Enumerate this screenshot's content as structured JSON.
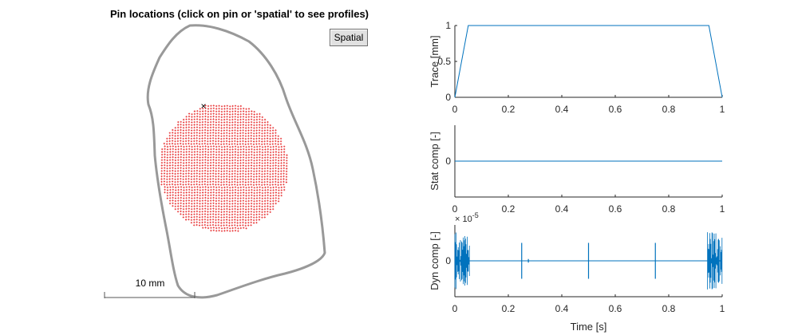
{
  "map": {
    "title": "Pin locations (click on pin or 'spatial' to see profiles)",
    "spatial_button": "Spatial",
    "scale_label": "10 mm",
    "outline_color": "#999999",
    "pin_color": "#e8393a",
    "marker_symbol": "×"
  },
  "chart_data": [
    {
      "type": "line",
      "ylabel": "Trace [mm]",
      "xlabel": "",
      "xlim": [
        0,
        1
      ],
      "ylim": [
        0,
        1
      ],
      "xticks": [
        0,
        0.2,
        0.4,
        0.6,
        0.8,
        1
      ],
      "xtick_labels": [
        "0",
        "0.2",
        "0.4",
        "0.6",
        "0.8",
        "1"
      ],
      "yticks": [
        0,
        0.5,
        1
      ],
      "ytick_labels": [
        "0",
        "0.5",
        "1"
      ],
      "series": [
        {
          "x": [
            0,
            0.05,
            0.95,
            1
          ],
          "y": [
            0,
            1,
            1,
            0
          ],
          "color": "#0072bd"
        }
      ]
    },
    {
      "type": "line",
      "ylabel": "Stat comp [-]",
      "xlabel": "",
      "xlim": [
        0,
        1
      ],
      "ylim": [
        -1,
        1
      ],
      "xticks": [
        0,
        0.2,
        0.4,
        0.6,
        0.8,
        1
      ],
      "xtick_labels": [
        "0",
        "0.2",
        "0.4",
        "0.6",
        "0.8",
        "1"
      ],
      "yticks": [
        0
      ],
      "ytick_labels": [
        "0"
      ],
      "series": [
        {
          "x": [
            0,
            1
          ],
          "y": [
            0,
            0
          ],
          "color": "#0072bd"
        }
      ]
    },
    {
      "type": "line",
      "ylabel": "Dyn comp [-]",
      "xlabel": "Time [s]",
      "exponent_label": "× 10",
      "exponent_power": "-5",
      "xlim": [
        0,
        1
      ],
      "ylim": [
        -1,
        1
      ],
      "xticks": [
        0,
        0.2,
        0.4,
        0.6,
        0.8,
        1
      ],
      "xtick_labels": [
        "0",
        "0.2",
        "0.4",
        "0.6",
        "0.8",
        "1"
      ],
      "yticks": [
        0
      ],
      "ytick_labels": [
        "0"
      ],
      "baseline": 0,
      "noise_bands": [
        {
          "x0": 0,
          "x1": 0.055,
          "amplitude": 0.8
        },
        {
          "x0": 0.945,
          "x1": 1,
          "amplitude": 0.8
        }
      ],
      "spikes": [
        {
          "x": 0.25,
          "amplitude": 0.5
        },
        {
          "x": 0.275,
          "amplitude": 0.05
        },
        {
          "x": 0.5,
          "amplitude": 0.5
        },
        {
          "x": 0.75,
          "amplitude": 0.5
        }
      ],
      "color": "#0072bd"
    }
  ]
}
